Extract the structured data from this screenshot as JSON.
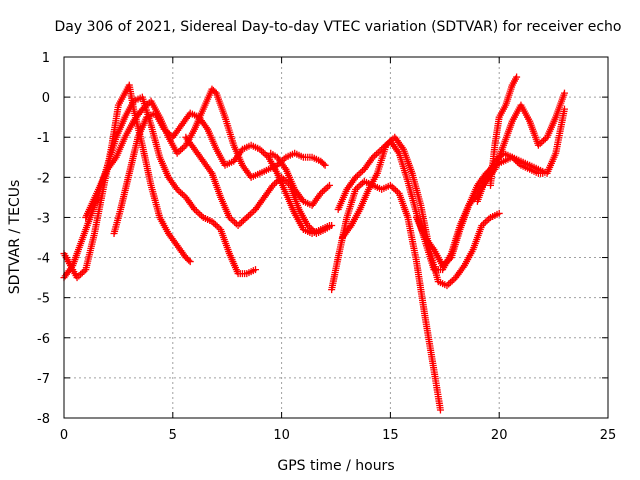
{
  "chart_data": {
    "type": "scatter",
    "title": "Day 306 of 2021, Sidereal Day-to-day VTEC variation (SDTVAR) for receiver echo",
    "xlabel": "GPS time / hours",
    "ylabel": "SDTVAR / TECUs",
    "xlim": [
      0,
      25
    ],
    "ylim": [
      -8,
      1
    ],
    "xticks": [
      0,
      5,
      10,
      15,
      20,
      25
    ],
    "yticks": [
      -8,
      -7,
      -6,
      -5,
      -4,
      -3,
      -2,
      -1,
      0,
      1
    ],
    "grid": true,
    "legend": "none",
    "marker": "plus",
    "color": "#ff0000",
    "series": [
      {
        "x": [
          0.0,
          0.3,
          0.6,
          1.0,
          1.4,
          1.8,
          2.2,
          2.5,
          2.8,
          3.0,
          3.2,
          3.6,
          4.0,
          4.4,
          4.8,
          5.2,
          5.6,
          5.8
        ],
        "y": [
          -3.9,
          -4.2,
          -4.5,
          -4.3,
          -3.4,
          -2.3,
          -1.2,
          -0.2,
          0.1,
          0.3,
          -0.3,
          -1.2,
          -2.2,
          -3.0,
          -3.4,
          -3.7,
          -4.0,
          -4.1
        ]
      },
      {
        "x": [
          0.0,
          0.4,
          0.8,
          1.2,
          1.6,
          2.0,
          2.4,
          2.8,
          3.2,
          3.6,
          4.0,
          4.4,
          4.8,
          5.2,
          5.6,
          6.0,
          6.4,
          6.8,
          7.2,
          7.6,
          8.0,
          8.4,
          8.8
        ],
        "y": [
          -4.5,
          -4.2,
          -3.6,
          -3.0,
          -2.4,
          -1.7,
          -1.0,
          -0.5,
          -0.1,
          0.0,
          -0.7,
          -1.5,
          -2.0,
          -2.3,
          -2.5,
          -2.8,
          -3.0,
          -3.1,
          -3.3,
          -3.9,
          -4.4,
          -4.4,
          -4.3
        ]
      },
      {
        "x": [
          1.0,
          1.5,
          2.0,
          2.4,
          2.8,
          3.2,
          3.6,
          4.0,
          4.4,
          4.8,
          5.2,
          5.6,
          6.0,
          6.4,
          6.8,
          7.0,
          7.4,
          7.8,
          8.2,
          8.6,
          9.0,
          9.4,
          9.8,
          10.2,
          10.6,
          11.0,
          11.4,
          11.8,
          12.0
        ],
        "y": [
          -3.0,
          -2.4,
          -1.8,
          -1.5,
          -1.0,
          -0.6,
          -0.3,
          -0.1,
          -0.5,
          -1.0,
          -1.4,
          -1.2,
          -0.8,
          -0.3,
          0.2,
          0.1,
          -0.5,
          -1.2,
          -1.7,
          -2.0,
          -1.9,
          -1.8,
          -1.7,
          -1.5,
          -1.4,
          -1.5,
          -1.5,
          -1.6,
          -1.7
        ]
      },
      {
        "x": [
          2.3,
          2.6,
          3.0,
          3.4,
          3.8,
          4.2,
          4.6,
          5.0,
          5.4,
          5.8,
          6.2,
          6.6,
          7.0,
          7.4,
          7.8,
          8.2,
          8.6,
          9.0,
          9.4,
          9.8,
          10.2,
          10.6,
          11.0,
          11.4,
          11.8,
          12.2
        ],
        "y": [
          -3.4,
          -2.8,
          -1.9,
          -1.0,
          -0.5,
          -0.4,
          -0.8,
          -1.0,
          -0.7,
          -0.4,
          -0.5,
          -0.8,
          -1.3,
          -1.7,
          -1.6,
          -1.3,
          -1.2,
          -1.3,
          -1.5,
          -1.9,
          -2.4,
          -2.9,
          -3.3,
          -3.4,
          -3.3,
          -3.2
        ]
      },
      {
        "x": [
          5.6,
          6.0,
          6.4,
          6.8,
          7.2,
          7.6,
          8.0,
          8.4,
          8.8,
          9.2,
          9.6,
          10.0,
          10.4,
          10.8,
          11.2,
          11.6,
          12.0,
          12.3
        ],
        "y": [
          -1.0,
          -1.3,
          -1.6,
          -1.9,
          -2.5,
          -3.0,
          -3.2,
          -3.0,
          -2.8,
          -2.5,
          -2.2,
          -2.0,
          -2.2,
          -2.8,
          -3.2,
          -3.4,
          -3.3,
          -3.2
        ]
      },
      {
        "x": [
          9.5,
          9.8,
          10.2,
          10.6,
          11.0,
          11.4,
          11.8,
          12.2
        ],
        "y": [
          -1.4,
          -1.5,
          -1.8,
          -2.3,
          -2.6,
          -2.7,
          -2.4,
          -2.2
        ]
      },
      {
        "x": [
          12.3,
          12.6,
          13.0,
          13.4,
          13.8,
          14.2,
          14.6,
          15.0,
          15.4,
          15.8,
          16.2,
          16.6,
          17.0,
          17.3
        ],
        "y": [
          -4.8,
          -4.0,
          -3.0,
          -2.3,
          -2.1,
          -2.2,
          -2.3,
          -2.2,
          -2.4,
          -3.0,
          -4.1,
          -5.5,
          -6.8,
          -7.8
        ]
      },
      {
        "x": [
          12.8,
          13.2,
          13.6,
          14.0,
          14.4,
          14.8,
          15.2,
          15.6,
          16.0,
          16.4,
          16.8,
          17.2,
          17.6,
          18.0,
          18.4,
          18.8,
          19.2,
          19.6,
          20.0
        ],
        "y": [
          -3.5,
          -3.2,
          -2.8,
          -2.3,
          -1.9,
          -1.2,
          -1.0,
          -1.3,
          -1.9,
          -2.7,
          -3.8,
          -4.6,
          -4.7,
          -4.5,
          -4.2,
          -3.8,
          -3.2,
          -3.0,
          -2.9
        ]
      },
      {
        "x": [
          12.6,
          13.0,
          13.4,
          13.8,
          14.2,
          14.6,
          15.0,
          15.4,
          15.8,
          16.2,
          16.6,
          17.0,
          17.4,
          17.8,
          18.2,
          18.6,
          19.0,
          19.4,
          19.8,
          20.2,
          20.6,
          21.0,
          21.4,
          21.8,
          22.2,
          22.6,
          23.0
        ],
        "y": [
          -2.8,
          -2.3,
          -2.0,
          -1.8,
          -1.5,
          -1.3,
          -1.1,
          -1.4,
          -2.1,
          -2.9,
          -3.6,
          -4.3,
          -4.3,
          -3.9,
          -3.2,
          -2.7,
          -2.4,
          -2.1,
          -1.8,
          -1.2,
          -0.6,
          -0.2,
          -0.6,
          -1.2,
          -1.0,
          -0.5,
          0.1
        ]
      },
      {
        "x": [
          16.2,
          16.6,
          17.0,
          17.4,
          17.8,
          18.2,
          18.6,
          19.0,
          19.4,
          19.8,
          20.2,
          20.6,
          21.0,
          21.4,
          21.8,
          22.2,
          22.6,
          23.0
        ],
        "y": [
          -3.0,
          -3.5,
          -3.8,
          -4.2,
          -4.0,
          -3.3,
          -2.7,
          -2.2,
          -1.9,
          -1.7,
          -1.6,
          -1.5,
          -1.6,
          -1.7,
          -1.8,
          -1.9,
          -1.4,
          -0.3
        ]
      },
      {
        "x": [
          19.0,
          19.4,
          19.8,
          20.2,
          20.6,
          21.0,
          21.4,
          21.8,
          22.0
        ],
        "y": [
          -2.6,
          -2.0,
          -1.6,
          -1.4,
          -1.5,
          -1.7,
          -1.8,
          -1.9,
          -1.9
        ]
      },
      {
        "x": [
          19.6,
          19.8,
          20.0,
          20.3,
          20.6,
          20.8
        ],
        "y": [
          -2.2,
          -1.2,
          -0.5,
          -0.2,
          0.3,
          0.5
        ]
      }
    ]
  }
}
